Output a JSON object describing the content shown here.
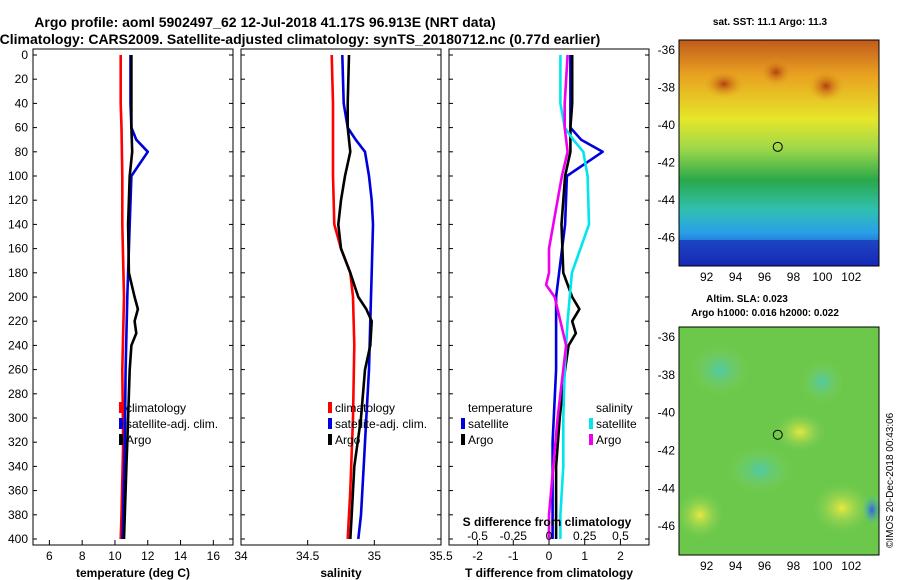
{
  "header": {
    "line1": "Argo profile: aoml 5902497_62 12-Jul-2018 41.17S 96.913E (NRT data)",
    "line2": "Climatology: CARS2009. Satellite-adjusted climatology: synTS_20180712.nc (0.77d earlier)"
  },
  "depth_ticks": [
    "0",
    "20",
    "40",
    "60",
    "80",
    "100",
    "120",
    "140",
    "160",
    "180",
    "200",
    "220",
    "240",
    "260",
    "280",
    "300",
    "320",
    "340",
    "360",
    "380",
    "400"
  ],
  "colors": {
    "climatology": "#ff0000",
    "satellite": "#0000dd",
    "argo": "#000000",
    "sal_sat": "#00e5ee",
    "sal_argo": "#ee00ee"
  },
  "chart_data": [
    {
      "type": "line",
      "id": "temperature",
      "xlabel": "temperature (deg C)",
      "xlim": [
        5,
        17.2
      ],
      "xticks": [
        "6",
        "8",
        "10",
        "12",
        "14",
        "16"
      ],
      "ylim": [
        400,
        0
      ],
      "legend": [
        "climatology",
        "satellite-adj. clim.",
        "Argo"
      ],
      "series": [
        {
          "name": "climatology",
          "depth": [
            0,
            40,
            60,
            100,
            140,
            200,
            260,
            320,
            380,
            400
          ],
          "values": [
            10.35,
            10.35,
            10.4,
            10.45,
            10.45,
            10.55,
            10.45,
            10.5,
            10.4,
            10.35
          ]
        },
        {
          "name": "satellite-adj. clim.",
          "depth": [
            0,
            40,
            60,
            70,
            80,
            90,
            100,
            140,
            200,
            260,
            320,
            380,
            400
          ],
          "values": [
            10.95,
            10.95,
            11.0,
            11.3,
            12.0,
            11.5,
            11.0,
            10.9,
            10.75,
            10.65,
            10.6,
            10.5,
            10.45
          ]
        },
        {
          "name": "Argo",
          "depth": [
            0,
            40,
            60,
            80,
            100,
            140,
            180,
            200,
            210,
            220,
            230,
            240,
            260,
            280,
            300,
            320,
            340,
            360,
            380,
            400
          ],
          "values": [
            11.0,
            11.0,
            11.0,
            11.05,
            10.9,
            10.8,
            10.85,
            11.2,
            11.4,
            11.2,
            11.3,
            11.0,
            10.9,
            10.85,
            10.8,
            10.75,
            10.7,
            10.65,
            10.6,
            10.55
          ]
        }
      ]
    },
    {
      "type": "line",
      "id": "salinity",
      "xlabel": "salinity",
      "xlim": [
        34,
        35.5
      ],
      "xticks": [
        "34",
        "34.5",
        "35",
        "35.5"
      ],
      "ylim": [
        400,
        0
      ],
      "legend": [
        "climatology",
        "satellite-adj. clim.",
        "Argo"
      ],
      "series": [
        {
          "name": "climatology",
          "depth": [
            0,
            40,
            60,
            100,
            140,
            160,
            180,
            200,
            240,
            300,
            360,
            400
          ],
          "values": [
            34.68,
            34.69,
            34.69,
            34.69,
            34.7,
            34.75,
            34.82,
            34.84,
            34.85,
            34.84,
            34.82,
            34.8
          ],
          "note": "red"
        },
        {
          "name": "satellite-adj. clim.",
          "depth": [
            0,
            40,
            60,
            70,
            80,
            100,
            120,
            140,
            180,
            220,
            260,
            300,
            340,
            380,
            400
          ],
          "values": [
            34.76,
            34.77,
            34.8,
            34.86,
            34.93,
            34.96,
            34.98,
            34.99,
            34.98,
            34.97,
            34.96,
            34.94,
            34.92,
            34.9,
            34.88
          ]
        },
        {
          "name": "Argo",
          "depth": [
            0,
            40,
            60,
            80,
            100,
            120,
            140,
            160,
            180,
            200,
            210,
            220,
            240,
            260,
            300,
            340,
            380,
            400
          ],
          "values": [
            34.81,
            34.8,
            34.8,
            34.82,
            34.78,
            34.75,
            34.73,
            34.75,
            34.82,
            34.88,
            34.94,
            34.98,
            34.97,
            34.93,
            34.9,
            34.85,
            34.83,
            34.82
          ]
        }
      ]
    },
    {
      "type": "line",
      "id": "difference",
      "xlabel": "T difference from climatology",
      "xlabel_top": "S difference from climatology",
      "xlim": [
        -2.8,
        2.8
      ],
      "xticks": [
        "-2",
        "-1",
        "0",
        "1",
        "2"
      ],
      "xticks_top": [
        "-0.5",
        "-0.25",
        "0",
        "0.25",
        "0.5"
      ],
      "ylim": [
        400,
        0
      ],
      "legend_temperature": [
        "temperature",
        "satellite",
        "Argo"
      ],
      "legend_salinity": [
        "salinity",
        "satellite",
        "Argo"
      ],
      "series": [
        {
          "name": "T satellite",
          "depth": [
            0,
            40,
            60,
            70,
            80,
            90,
            100,
            140,
            200,
            260,
            320,
            380,
            400
          ],
          "values": [
            0.6,
            0.6,
            0.6,
            0.9,
            1.5,
            1.0,
            0.5,
            0.45,
            0.2,
            0.2,
            0.1,
            0.1,
            0.1
          ]
        },
        {
          "name": "T Argo",
          "depth": [
            0,
            40,
            60,
            80,
            100,
            140,
            180,
            200,
            210,
            220,
            230,
            240,
            260,
            300,
            340,
            380,
            400
          ],
          "values": [
            0.65,
            0.65,
            0.6,
            0.6,
            0.45,
            0.35,
            0.4,
            0.65,
            0.85,
            0.65,
            0.75,
            0.55,
            0.45,
            0.3,
            0.2,
            0.2,
            0.2
          ]
        },
        {
          "name": "S satellite",
          "depth": [
            0,
            40,
            60,
            70,
            80,
            100,
            140,
            180,
            220,
            260,
            300,
            340,
            380,
            400
          ],
          "values": [
            0.08,
            0.08,
            0.11,
            0.17,
            0.24,
            0.27,
            0.28,
            0.16,
            0.13,
            0.11,
            0.1,
            0.1,
            0.08,
            0.08
          ]
        },
        {
          "name": "S Argo",
          "depth": [
            0,
            40,
            60,
            80,
            100,
            120,
            140,
            160,
            180,
            190,
            200,
            240,
            300,
            340,
            380,
            400
          ],
          "values": [
            0.13,
            0.11,
            0.11,
            0.13,
            0.09,
            0.06,
            0.03,
            0.0,
            0.0,
            -0.02,
            0.04,
            0.12,
            0.06,
            0.03,
            0.0,
            0.0
          ]
        }
      ]
    }
  ],
  "maps": {
    "sst_title": "sat. SST: 11.1 Argo: 11.3",
    "sla_title1": "Altim. SLA: 0.023",
    "sla_title2": "Argo h1000: 0.016 h2000: 0.022",
    "lat_ticks": [
      "-36",
      "-38",
      "-40",
      "-42",
      "-44",
      "-46"
    ],
    "lon_ticks": [
      "92",
      "94",
      "96",
      "98",
      "100",
      "102"
    ],
    "profile_lon": 96.913,
    "profile_lat": -41.17
  },
  "credit": "©IMOS 20-Dec-2018 00:43:06"
}
